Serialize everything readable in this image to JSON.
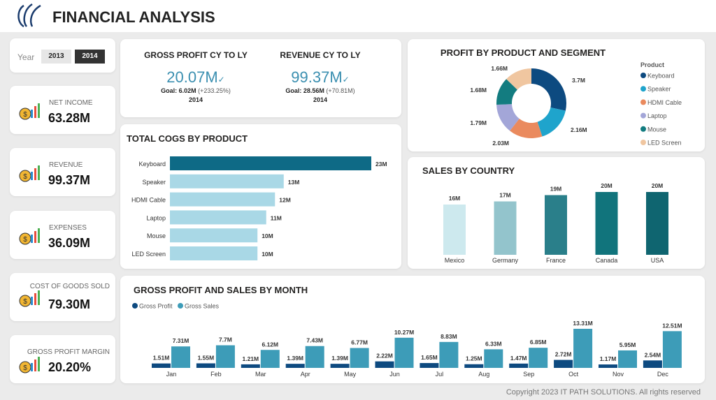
{
  "header": {
    "title": "FINANCIAL ANALYSIS"
  },
  "year_filter": {
    "label": "Year",
    "options": [
      "2013",
      "2014"
    ],
    "selected": "2014"
  },
  "kpis": [
    {
      "label": "NET INCOME",
      "value": "63.28M",
      "icon": "money-chart-icon"
    },
    {
      "label": "REVENUE",
      "value": "99.37M",
      "icon": "dollar-bar-chart-icon"
    },
    {
      "label": "EXPENSES",
      "value": "36.09M",
      "icon": "expense-coin-icon"
    },
    {
      "label": "COST OF GOODS SOLD",
      "value": "79.30M",
      "icon": "hand-coin-icon"
    },
    {
      "label": "GROSS PROFIT MARGIN",
      "value": "20.20%",
      "icon": "profit-growth-icon"
    }
  ],
  "goals": [
    {
      "title": "GROSS PROFIT CY TO LY",
      "value": "20.07M",
      "goal": "Goal: 6.02M",
      "diff": "(+233.25%)",
      "year": "2014",
      "check": "✓"
    },
    {
      "title": "REVENUE CY TO LY",
      "value": "99.37M",
      "goal": "Goal: 28.56M",
      "diff": "(+70.81M)",
      "year": "2014",
      "check": "✓"
    }
  ],
  "chart_data": [
    {
      "type": "bar",
      "orientation": "horizontal",
      "title": "TOTAL COGS BY PRODUCT",
      "categories": [
        "Keyboard",
        "Speaker",
        "HDMI Cable",
        "Laptop",
        "Mouse",
        "LED Screen"
      ],
      "values": [
        23,
        13,
        12,
        11,
        10,
        10
      ],
      "labels": [
        "23M",
        "13M",
        "12M",
        "11M",
        "10M",
        "10M"
      ],
      "colors": {
        "highlight": "#0e6a86",
        "other": "#a9d8e6"
      }
    },
    {
      "type": "pie",
      "donut": true,
      "title": "PROFIT BY PRODUCT AND SEGMENT",
      "legend_title": "Product",
      "legend": "right",
      "categories": [
        "Keyboard",
        "Speaker",
        "HDMI Cable",
        "Laptop",
        "Mouse",
        "LED Screen"
      ],
      "values": [
        3.7,
        2.16,
        2.03,
        1.79,
        1.68,
        1.66
      ],
      "labels": [
        "3.7M",
        "2.16M",
        "2.03M",
        "1.79M",
        "1.68M",
        "1.66M"
      ],
      "colors": [
        "#0d4a80",
        "#1fa4cc",
        "#ea8a5e",
        "#a3a6d8",
        "#137c80",
        "#f0c6a0"
      ]
    },
    {
      "type": "bar",
      "title": "SALES BY COUNTRY",
      "categories": [
        "Mexico",
        "Germany",
        "France",
        "Canada",
        "USA"
      ],
      "values": [
        16,
        17,
        19,
        20,
        20
      ],
      "labels": [
        "16M",
        "17M",
        "19M",
        "20M",
        "20M"
      ],
      "colors": [
        "#cde9ee",
        "#93c4cc",
        "#2a7f8a",
        "#11747c",
        "#0f6570"
      ]
    },
    {
      "type": "bar",
      "title": "GROSS PROFIT AND SALES BY MONTH",
      "legend": "top-left",
      "categories": [
        "Jan",
        "Feb",
        "Mar",
        "Apr",
        "May",
        "Jun",
        "Jul",
        "Aug",
        "Sep",
        "Oct",
        "Nov",
        "Dec"
      ],
      "series": [
        {
          "name": "Gross Profit",
          "color": "#0d4a80",
          "values": [
            1.51,
            1.55,
            1.21,
            1.39,
            1.39,
            2.22,
            1.65,
            1.25,
            1.47,
            2.72,
            1.17,
            2.54
          ],
          "labels": [
            "1.51M",
            "1.55M",
            "1.21M",
            "1.39M",
            "1.39M",
            "2.22M",
            "1.65M",
            "1.25M",
            "1.47M",
            "2.72M",
            "1.17M",
            "2.54M"
          ]
        },
        {
          "name": "Gross Sales",
          "color": "#3d9cb8",
          "values": [
            7.31,
            7.7,
            6.12,
            7.43,
            6.77,
            10.27,
            8.83,
            6.33,
            6.85,
            13.31,
            5.95,
            12.51
          ],
          "labels": [
            "7.31M",
            "7.7M",
            "6.12M",
            "7.43M",
            "6.77M",
            "10.27M",
            "8.83M",
            "6.33M",
            "6.85M",
            "13.31M",
            "5.95M",
            "12.51M"
          ]
        }
      ]
    }
  ],
  "footer": {
    "copyright": "Copyright 2023 IT PATH SOLUTIONS. All rights reserved"
  }
}
